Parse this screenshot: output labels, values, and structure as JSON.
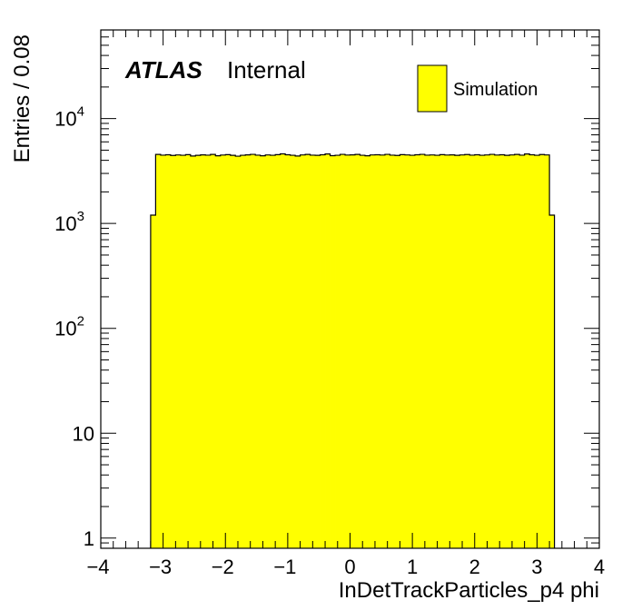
{
  "chart_data": {
    "type": "bar",
    "xlabel": "InDetTrackParticles_p4 phi",
    "ylabel": "Entries / 0.08",
    "xlim": [
      -4,
      4
    ],
    "ylim": [
      0.8,
      70000
    ],
    "yscale": "log",
    "x_ticks": [
      "−4",
      "−3",
      "−2",
      "−1",
      "0",
      "1",
      "2",
      "3",
      "4"
    ],
    "y_ticks": [
      {
        "value": 1,
        "base": "1",
        "exp": ""
      },
      {
        "value": 10,
        "base": "10",
        "exp": ""
      },
      {
        "value": 100,
        "base": "10",
        "exp": "2"
      },
      {
        "value": 1000,
        "base": "10",
        "exp": "3"
      },
      {
        "value": 10000,
        "base": "10",
        "exp": "4"
      }
    ],
    "bin_width": 0.08,
    "bin_start": -3.2,
    "values": [
      1200,
      4550,
      4480,
      4520,
      4450,
      4500,
      4470,
      4530,
      4400,
      4460,
      4510,
      4480,
      4550,
      4420,
      4490,
      4530,
      4460,
      4380,
      4470,
      4510,
      4560,
      4480,
      4420,
      4500,
      4470,
      4530,
      4610,
      4520,
      4470,
      4400,
      4500,
      4550,
      4480,
      4460,
      4520,
      4600,
      4430,
      4470,
      4560,
      4490,
      4510,
      4550,
      4470,
      4420,
      4500,
      4520,
      4490,
      4560,
      4480,
      4450,
      4530,
      4500,
      4470,
      4520,
      4560,
      4480,
      4500,
      4470,
      4530,
      4490,
      4510,
      4460,
      4500,
      4540,
      4480,
      4520,
      4470,
      4500,
      4560,
      4490,
      4520,
      4460,
      4500,
      4550,
      4480,
      4600,
      4520,
      4470,
      4540,
      4500,
      1200
    ],
    "legend": {
      "placement": "top-right",
      "entries": [
        {
          "name": "Simulation",
          "color": "#ffff00"
        }
      ]
    },
    "annotation": {
      "bold": "ATLAS",
      "normal": "Internal"
    },
    "fill_color": "#ffff00",
    "line_color": "#000000"
  }
}
